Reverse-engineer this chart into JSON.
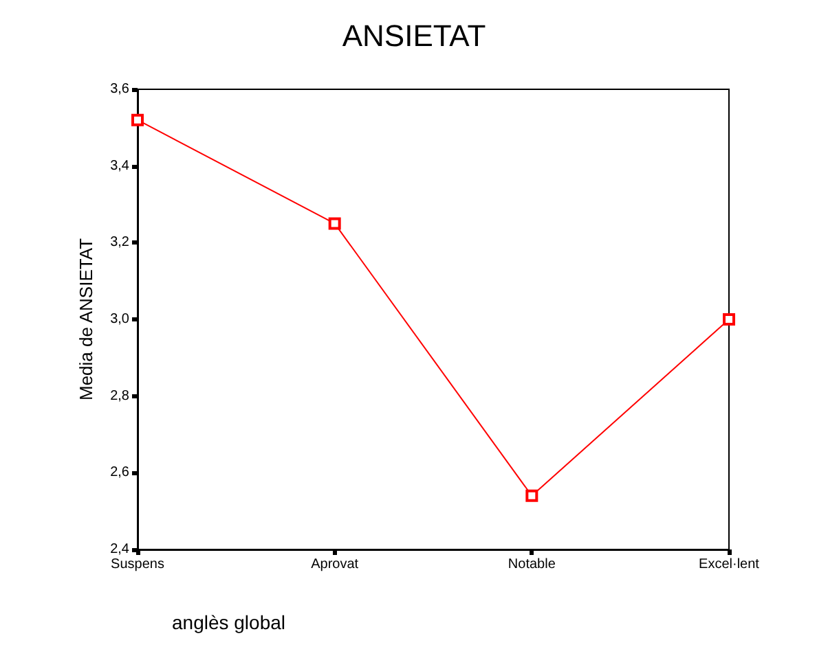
{
  "chart_data": {
    "type": "line",
    "title": "ANSIETAT",
    "xlabel": "anglès global",
    "ylabel": "Media de ANSIETAT",
    "categories": [
      "Suspens",
      "Aprovat",
      "Notable",
      "Excel·lent"
    ],
    "series": [
      {
        "color": "#ff0000",
        "values": [
          3.52,
          3.25,
          2.54,
          3.0
        ]
      }
    ],
    "ylim": [
      2.4,
      3.6
    ],
    "yticks": [
      {
        "value": 2.4,
        "label": "2,4"
      },
      {
        "value": 2.6,
        "label": "2,6"
      },
      {
        "value": 2.8,
        "label": "2,8"
      },
      {
        "value": 3.0,
        "label": "3,0"
      },
      {
        "value": 3.2,
        "label": "3,2"
      },
      {
        "value": 3.4,
        "label": "3,4"
      },
      {
        "value": 3.6,
        "label": "3,6"
      }
    ],
    "marker": "square",
    "grid": false
  }
}
